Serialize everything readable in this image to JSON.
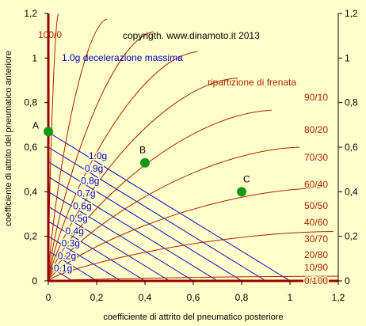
{
  "chart_data": {
    "type": "line",
    "copyright": "copyrigth. www.dinamoto.it  2013",
    "xlabel": "coefficiente di attrito del pneumatico posteriore",
    "ylabel": "coefficiente di attrito del pneumatico anteriore",
    "xlim": [
      0,
      1.2
    ],
    "ylim": [
      0,
      1.2
    ],
    "x_ticks": [
      "0",
      "0,2",
      "0,4",
      "0,6",
      "0,8",
      "1",
      "1,2"
    ],
    "y_ticks": [
      "0",
      "0,2",
      "0,4",
      "0,6",
      "0,8",
      "1",
      "1,2"
    ],
    "deceleration_lines": {
      "caption": "1.0g decelerazione massima",
      "labels": [
        "0.1g",
        "0.2g",
        "0.3g",
        "0.4g",
        "0.5g",
        "0.6g",
        "0.7g",
        "0.8g",
        "0.9g",
        "1.0g"
      ],
      "g_values": [
        0.1,
        0.2,
        0.3,
        0.4,
        0.5,
        0.6,
        0.7,
        0.8,
        0.9,
        1.0
      ],
      "front_intercepts": [
        0.067,
        0.134,
        0.2,
        0.267,
        0.334,
        0.4,
        0.467,
        0.534,
        0.6,
        0.667
      ],
      "color": "#0000CC"
    },
    "brake_distribution_curves": {
      "caption": "ripartizione di frenata",
      "labels": [
        "100/0",
        "90/10",
        "80/20",
        "70/30",
        "60/40",
        "50/50",
        "40/60",
        "30/70",
        "20/80",
        "10/90",
        "0/100"
      ],
      "color": "#AA2200"
    },
    "points": [
      {
        "label": "A",
        "x": 0.0,
        "y": 0.67
      },
      {
        "label": "B",
        "x": 0.4,
        "y": 0.53
      },
      {
        "label": "C",
        "x": 0.8,
        "y": 0.4
      }
    ],
    "point_color": "#119911",
    "axis_color": "#990000",
    "grid": false
  }
}
